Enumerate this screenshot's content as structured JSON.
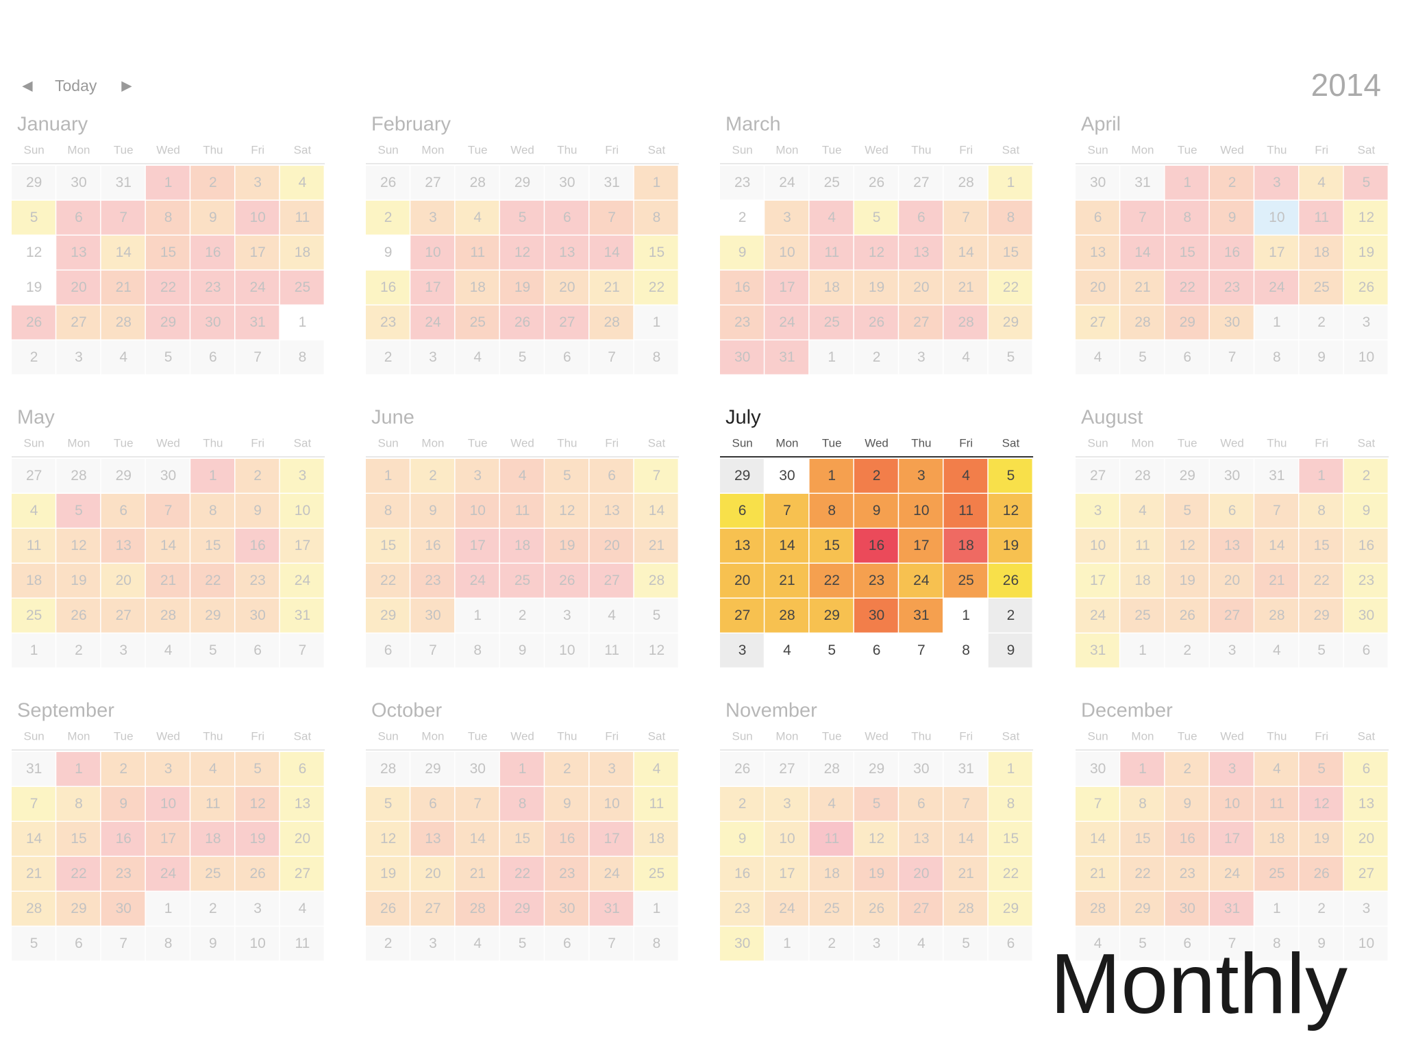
{
  "toolbar": {
    "prev": "◀",
    "today": "Today",
    "next": "▶",
    "year": "2014"
  },
  "weekdays": [
    "Sun",
    "Mon",
    "Tue",
    "Wed",
    "Thu",
    "Fri",
    "Sat"
  ],
  "palette": [
    "#ffffff",
    "#f8e04a",
    "#f7c150",
    "#f5a04f",
    "#f27e4a",
    "#ef6a62",
    "#eb4a5a",
    "#ececec",
    "#9ccff2"
  ],
  "caption": "Monthly",
  "months": [
    {
      "name": "January",
      "weeks": [
        [
          29,
          30,
          31,
          1,
          2,
          3,
          4
        ],
        [
          5,
          6,
          7,
          8,
          9,
          10,
          11
        ],
        [
          12,
          13,
          14,
          15,
          16,
          17,
          18
        ],
        [
          19,
          20,
          21,
          22,
          23,
          24,
          25
        ],
        [
          26,
          27,
          28,
          29,
          30,
          31,
          1
        ],
        [
          2,
          3,
          4,
          5,
          6,
          7,
          8
        ]
      ],
      "heat": [
        [
          7,
          7,
          7,
          5,
          4,
          3,
          1
        ],
        [
          1,
          5,
          5,
          4,
          3,
          5,
          3
        ],
        [
          0,
          5,
          2,
          4,
          5,
          3,
          2
        ],
        [
          0,
          5,
          4,
          5,
          5,
          5,
          5
        ],
        [
          5,
          3,
          3,
          5,
          5,
          5,
          0
        ],
        [
          7,
          7,
          7,
          7,
          7,
          7,
          7
        ]
      ]
    },
    {
      "name": "February",
      "weeks": [
        [
          26,
          27,
          28,
          29,
          30,
          31,
          1
        ],
        [
          2,
          3,
          4,
          5,
          6,
          7,
          8
        ],
        [
          9,
          10,
          11,
          12,
          13,
          14,
          15
        ],
        [
          16,
          17,
          18,
          19,
          20,
          21,
          22
        ],
        [
          23,
          24,
          25,
          26,
          27,
          28,
          1
        ],
        [
          2,
          3,
          4,
          5,
          6,
          7,
          8
        ]
      ],
      "heat": [
        [
          7,
          7,
          7,
          7,
          7,
          7,
          3
        ],
        [
          1,
          3,
          2,
          5,
          5,
          4,
          3
        ],
        [
          0,
          5,
          4,
          5,
          5,
          5,
          1
        ],
        [
          1,
          5,
          3,
          4,
          3,
          2,
          1
        ],
        [
          2,
          5,
          4,
          5,
          5,
          3,
          7
        ],
        [
          7,
          7,
          7,
          7,
          7,
          7,
          7
        ]
      ]
    },
    {
      "name": "March",
      "weeks": [
        [
          23,
          24,
          25,
          26,
          27,
          28,
          1
        ],
        [
          2,
          3,
          4,
          5,
          6,
          7,
          8
        ],
        [
          9,
          10,
          11,
          12,
          13,
          14,
          15
        ],
        [
          16,
          17,
          18,
          19,
          20,
          21,
          22
        ],
        [
          23,
          24,
          25,
          26,
          27,
          28,
          29
        ],
        [
          30,
          31,
          1,
          2,
          3,
          4,
          5
        ]
      ],
      "heat": [
        [
          7,
          7,
          7,
          7,
          7,
          7,
          1
        ],
        [
          0,
          3,
          5,
          1,
          5,
          3,
          4
        ],
        [
          1,
          3,
          5,
          5,
          5,
          3,
          3
        ],
        [
          4,
          5,
          3,
          3,
          3,
          3,
          1
        ],
        [
          4,
          5,
          5,
          5,
          4,
          5,
          2
        ],
        [
          5,
          5,
          7,
          7,
          7,
          7,
          7
        ]
      ]
    },
    {
      "name": "April",
      "weeks": [
        [
          30,
          31,
          1,
          2,
          3,
          4,
          5
        ],
        [
          6,
          7,
          8,
          9,
          10,
          11,
          12
        ],
        [
          13,
          14,
          15,
          16,
          17,
          18,
          19
        ],
        [
          20,
          21,
          22,
          23,
          24,
          25,
          26
        ],
        [
          27,
          28,
          29,
          30,
          1,
          2,
          3
        ],
        [
          4,
          5,
          6,
          7,
          8,
          9,
          10
        ]
      ],
      "heat": [
        [
          7,
          7,
          5,
          4,
          5,
          2,
          5
        ],
        [
          3,
          5,
          5,
          4,
          8,
          5,
          1
        ],
        [
          3,
          5,
          5,
          5,
          2,
          3,
          1
        ],
        [
          3,
          3,
          5,
          5,
          5,
          3,
          1
        ],
        [
          2,
          3,
          4,
          3,
          7,
          7,
          7
        ],
        [
          7,
          7,
          7,
          7,
          7,
          7,
          7
        ]
      ]
    },
    {
      "name": "May",
      "weeks": [
        [
          27,
          28,
          29,
          30,
          1,
          2,
          3
        ],
        [
          4,
          5,
          6,
          7,
          8,
          9,
          10
        ],
        [
          11,
          12,
          13,
          14,
          15,
          16,
          17
        ],
        [
          18,
          19,
          20,
          21,
          22,
          23,
          24
        ],
        [
          25,
          26,
          27,
          28,
          29,
          30,
          31
        ],
        [
          1,
          2,
          3,
          4,
          5,
          6,
          7
        ]
      ],
      "heat": [
        [
          7,
          7,
          7,
          7,
          5,
          3,
          1
        ],
        [
          1,
          5,
          3,
          4,
          3,
          3,
          1
        ],
        [
          2,
          3,
          4,
          3,
          3,
          5,
          2
        ],
        [
          3,
          3,
          2,
          4,
          4,
          3,
          1
        ],
        [
          1,
          3,
          3,
          3,
          3,
          3,
          1
        ],
        [
          7,
          7,
          7,
          7,
          7,
          7,
          7
        ]
      ]
    },
    {
      "name": "June",
      "weeks": [
        [
          1,
          2,
          3,
          4,
          5,
          6,
          7
        ],
        [
          8,
          9,
          10,
          11,
          12,
          13,
          14
        ],
        [
          15,
          16,
          17,
          18,
          19,
          20,
          21
        ],
        [
          22,
          23,
          24,
          25,
          26,
          27,
          28
        ],
        [
          29,
          30,
          1,
          2,
          3,
          4,
          5
        ],
        [
          6,
          7,
          8,
          9,
          10,
          11,
          12
        ]
      ],
      "heat": [
        [
          3,
          2,
          3,
          4,
          3,
          3,
          1
        ],
        [
          3,
          3,
          4,
          4,
          3,
          3,
          2
        ],
        [
          2,
          3,
          5,
          5,
          4,
          4,
          3
        ],
        [
          3,
          4,
          5,
          5,
          5,
          5,
          1
        ],
        [
          2,
          3,
          7,
          7,
          7,
          7,
          7
        ],
        [
          7,
          7,
          7,
          7,
          7,
          7,
          7
        ]
      ]
    },
    {
      "name": "July",
      "highlighted": true,
      "weeks": [
        [
          29,
          30,
          1,
          2,
          3,
          4,
          5
        ],
        [
          6,
          7,
          8,
          9,
          10,
          11,
          12
        ],
        [
          13,
          14,
          15,
          16,
          17,
          18,
          19
        ],
        [
          20,
          21,
          22,
          23,
          24,
          25,
          26
        ],
        [
          27,
          28,
          29,
          30,
          31,
          1,
          2
        ],
        [
          3,
          4,
          5,
          6,
          7,
          8,
          9
        ]
      ],
      "heat": [
        [
          7,
          0,
          3,
          4,
          3,
          4,
          1
        ],
        [
          1,
          2,
          3,
          3,
          3,
          4,
          2
        ],
        [
          2,
          2,
          2,
          6,
          3,
          5,
          2
        ],
        [
          2,
          2,
          3,
          3,
          2,
          3,
          1
        ],
        [
          2,
          2,
          2,
          4,
          3,
          0,
          7
        ],
        [
          7,
          0,
          0,
          0,
          0,
          0,
          7
        ]
      ]
    },
    {
      "name": "August",
      "weeks": [
        [
          27,
          28,
          29,
          30,
          31,
          1,
          2
        ],
        [
          3,
          4,
          5,
          6,
          7,
          8,
          9
        ],
        [
          10,
          11,
          12,
          13,
          14,
          15,
          16
        ],
        [
          17,
          18,
          19,
          20,
          21,
          22,
          23
        ],
        [
          24,
          25,
          26,
          27,
          28,
          29,
          30
        ],
        [
          31,
          1,
          2,
          3,
          4,
          5,
          6
        ]
      ],
      "heat": [
        [
          7,
          7,
          7,
          7,
          7,
          5,
          1
        ],
        [
          1,
          2,
          3,
          2,
          3,
          2,
          1
        ],
        [
          2,
          2,
          3,
          4,
          3,
          3,
          2
        ],
        [
          1,
          2,
          3,
          3,
          4,
          3,
          1
        ],
        [
          2,
          3,
          3,
          4,
          3,
          3,
          1
        ],
        [
          1,
          7,
          7,
          7,
          7,
          7,
          7
        ]
      ]
    },
    {
      "name": "September",
      "weeks": [
        [
          31,
          1,
          2,
          3,
          4,
          5,
          6
        ],
        [
          7,
          8,
          9,
          10,
          11,
          12,
          13
        ],
        [
          14,
          15,
          16,
          17,
          18,
          19,
          20
        ],
        [
          21,
          22,
          23,
          24,
          25,
          26,
          27
        ],
        [
          28,
          29,
          30,
          1,
          2,
          3,
          4
        ],
        [
          5,
          6,
          7,
          8,
          9,
          10,
          11
        ]
      ],
      "heat": [
        [
          7,
          5,
          3,
          3,
          3,
          3,
          1
        ],
        [
          1,
          2,
          4,
          5,
          3,
          4,
          1
        ],
        [
          2,
          3,
          5,
          4,
          5,
          5,
          1
        ],
        [
          2,
          5,
          4,
          5,
          3,
          3,
          1
        ],
        [
          2,
          3,
          4,
          7,
          7,
          7,
          7
        ],
        [
          7,
          7,
          7,
          7,
          7,
          7,
          7
        ]
      ]
    },
    {
      "name": "October",
      "weeks": [
        [
          28,
          29,
          30,
          1,
          2,
          3,
          4
        ],
        [
          5,
          6,
          7,
          8,
          9,
          10,
          11
        ],
        [
          12,
          13,
          14,
          15,
          16,
          17,
          18
        ],
        [
          19,
          20,
          21,
          22,
          23,
          24,
          25
        ],
        [
          26,
          27,
          28,
          29,
          30,
          31,
          1
        ],
        [
          2,
          3,
          4,
          5,
          6,
          7,
          8
        ]
      ],
      "heat": [
        [
          7,
          7,
          7,
          5,
          3,
          3,
          1
        ],
        [
          2,
          3,
          3,
          5,
          3,
          3,
          1
        ],
        [
          2,
          4,
          3,
          3,
          4,
          5,
          2
        ],
        [
          2,
          2,
          3,
          5,
          4,
          3,
          1
        ],
        [
          3,
          3,
          4,
          5,
          4,
          5,
          7
        ],
        [
          7,
          7,
          7,
          7,
          7,
          7,
          7
        ]
      ]
    },
    {
      "name": "November",
      "weeks": [
        [
          26,
          27,
          28,
          29,
          30,
          31,
          1
        ],
        [
          2,
          3,
          4,
          5,
          6,
          7,
          8
        ],
        [
          9,
          10,
          11,
          12,
          13,
          14,
          15
        ],
        [
          16,
          17,
          18,
          19,
          20,
          21,
          22
        ],
        [
          23,
          24,
          25,
          26,
          27,
          28,
          29
        ],
        [
          30,
          1,
          2,
          3,
          4,
          5,
          6
        ]
      ],
      "heat": [
        [
          7,
          7,
          7,
          7,
          7,
          7,
          1
        ],
        [
          2,
          2,
          3,
          4,
          3,
          3,
          1
        ],
        [
          1,
          2,
          6,
          2,
          3,
          3,
          1
        ],
        [
          2,
          2,
          3,
          4,
          5,
          3,
          1
        ],
        [
          2,
          3,
          3,
          3,
          4,
          3,
          1
        ],
        [
          1,
          7,
          7,
          7,
          7,
          7,
          7
        ]
      ]
    },
    {
      "name": "December",
      "weeks": [
        [
          30,
          1,
          2,
          3,
          4,
          5,
          6
        ],
        [
          7,
          8,
          9,
          10,
          11,
          12,
          13
        ],
        [
          14,
          15,
          16,
          17,
          18,
          19,
          20
        ],
        [
          21,
          22,
          23,
          24,
          25,
          26,
          27
        ],
        [
          28,
          29,
          30,
          31,
          1,
          2,
          3
        ],
        [
          4,
          5,
          6,
          7,
          8,
          9,
          10
        ]
      ],
      "heat": [
        [
          7,
          5,
          3,
          5,
          3,
          4,
          1
        ],
        [
          1,
          2,
          3,
          4,
          4,
          5,
          1
        ],
        [
          2,
          3,
          4,
          5,
          3,
          3,
          1
        ],
        [
          2,
          3,
          3,
          3,
          4,
          4,
          1
        ],
        [
          3,
          3,
          4,
          5,
          7,
          7,
          7
        ],
        [
          7,
          7,
          7,
          7,
          7,
          7,
          7
        ]
      ]
    }
  ]
}
